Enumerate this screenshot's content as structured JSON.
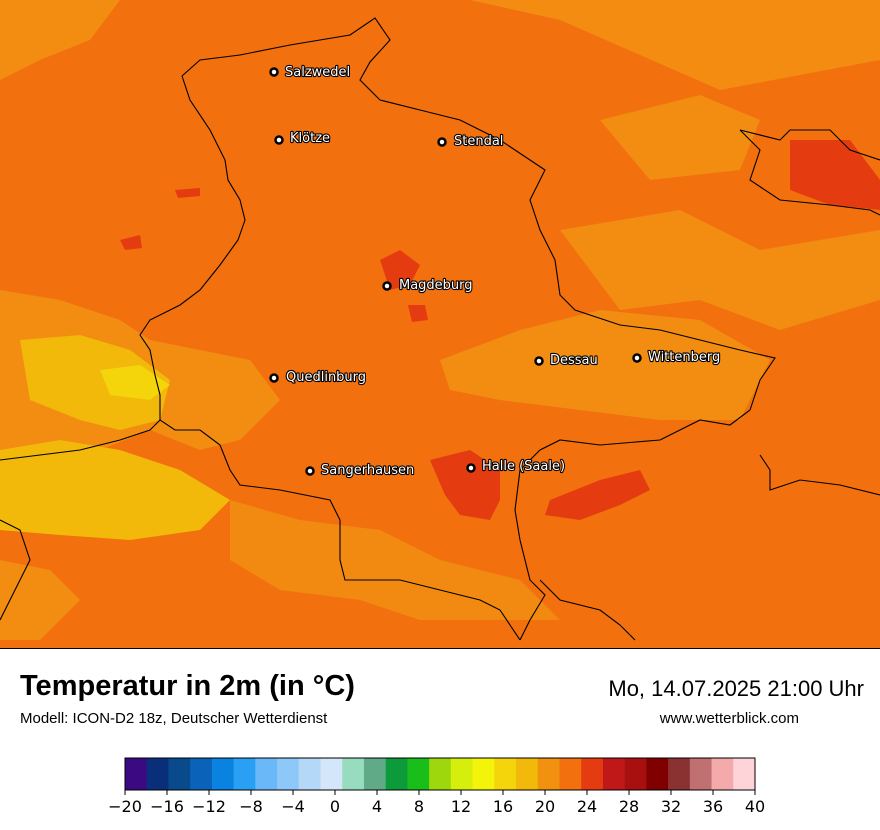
{
  "map": {
    "title": "Temperatur in 2m (in °C)",
    "model": "Modell: ICON-D2 18z, Deutscher Wetterdienst",
    "datetime": "Mo, 14.07.2025 21:00 Uhr",
    "website": "www.wetterblick.com",
    "cities": [
      {
        "name": "Salzwedel"
      },
      {
        "name": "Klötze"
      },
      {
        "name": "Stendal"
      },
      {
        "name": "Magdeburg"
      },
      {
        "name": "Dessau"
      },
      {
        "name": "Wittenberg"
      },
      {
        "name": "Quedlinburg"
      },
      {
        "name": "Sangerhausen"
      },
      {
        "name": "Halle (Saale)"
      }
    ]
  },
  "legend": {
    "min": -20,
    "max": 40,
    "step": 2,
    "tick_labels": [
      "−20",
      "−16",
      "−12",
      "−8",
      "−4",
      "0",
      "4",
      "8",
      "12",
      "16",
      "20",
      "24",
      "28",
      "32",
      "36",
      "40"
    ],
    "colors": [
      "#3b0a82",
      "#0a2f7a",
      "#084a8c",
      "#0a63b8",
      "#0a82e0",
      "#2aa0f5",
      "#6ab8f8",
      "#8ec8f8",
      "#b4d8f8",
      "#d4e6fa",
      "#98dcc0",
      "#60aa88",
      "#0c9a3a",
      "#1abe1a",
      "#9ed80c",
      "#d6ee0c",
      "#f4f40a",
      "#f4d40a",
      "#f2b80a",
      "#f29010",
      "#f2700e",
      "#e43c10",
      "#c01818",
      "#a81010",
      "#800000",
      "#8a3232",
      "#c07070",
      "#f4aaaa",
      "#ffd4d8"
    ]
  }
}
